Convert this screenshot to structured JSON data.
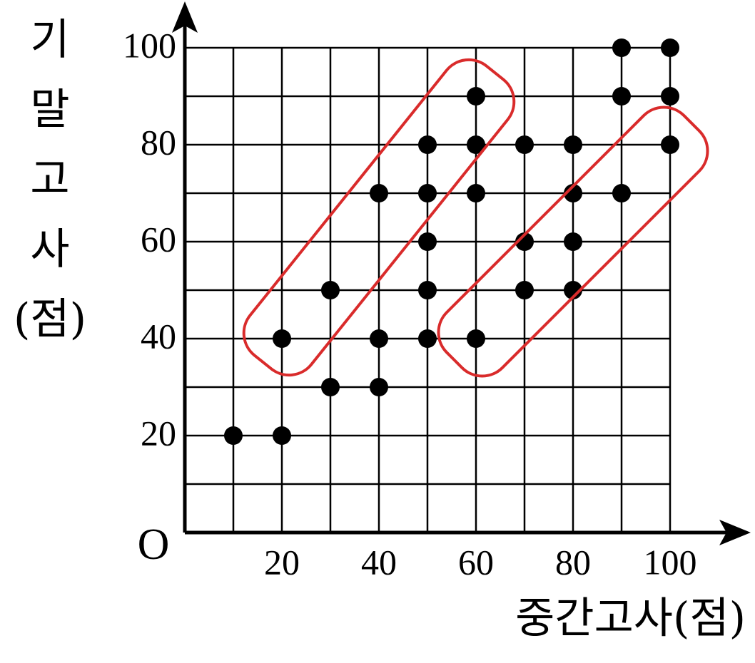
{
  "chart_data": {
    "type": "scatter",
    "x_label": "중간고사(점)",
    "y_label": "기말고사(점)",
    "origin_label": "O",
    "x": [
      10,
      20,
      20,
      30,
      30,
      40,
      40,
      40,
      50,
      50,
      50,
      50,
      50,
      60,
      60,
      60,
      60,
      70,
      70,
      70,
      80,
      80,
      80,
      80,
      90,
      90,
      90,
      100,
      100,
      100
    ],
    "values": [
      20,
      20,
      40,
      30,
      50,
      30,
      40,
      70,
      40,
      50,
      60,
      70,
      80,
      40,
      70,
      80,
      90,
      50,
      60,
      80,
      50,
      60,
      70,
      80,
      70,
      90,
      100,
      80,
      90,
      100
    ],
    "color": "#000000",
    "xlim": [
      0,
      100
    ],
    "ylim": [
      0,
      100
    ],
    "xticks": [
      20,
      40,
      60,
      80,
      100
    ],
    "yticks": [
      20,
      40,
      60,
      80,
      100
    ],
    "xgrid": [
      10,
      20,
      30,
      40,
      50,
      60,
      70,
      80,
      90,
      100
    ],
    "ygrid": [
      10,
      20,
      30,
      40,
      50,
      60,
      70,
      80,
      90,
      100
    ],
    "grid": true
  }
}
